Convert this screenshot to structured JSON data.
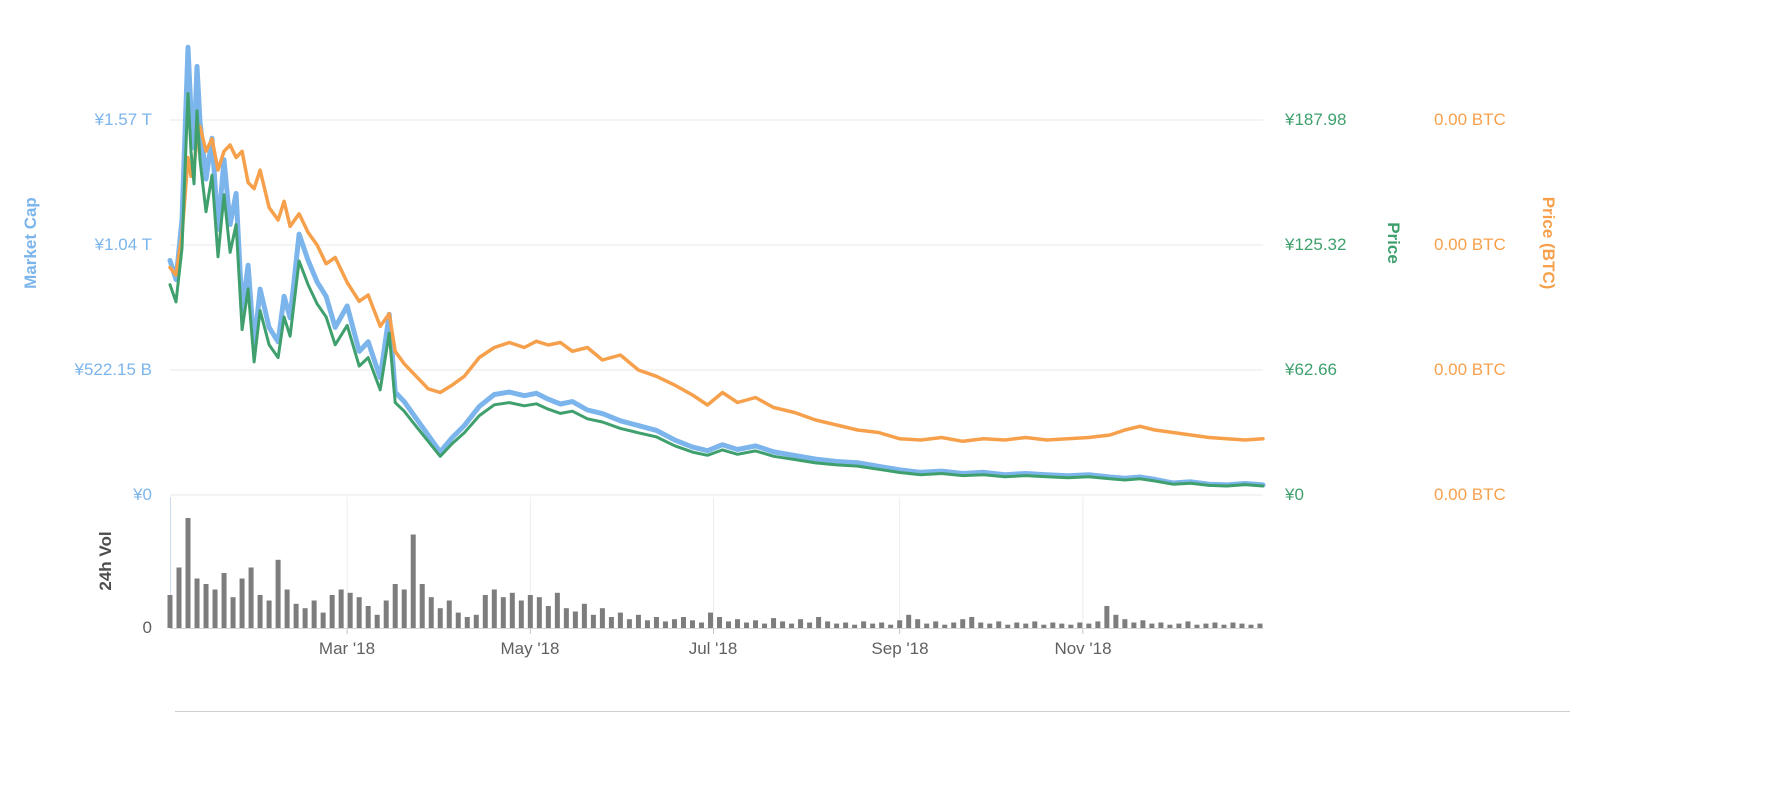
{
  "chart_data": {
    "type": "line",
    "grid": "horizontal-on",
    "legend": "none",
    "x_axis": {
      "year": "2018",
      "unit": "day_of_year_2018",
      "range_days": [
        0,
        364
      ],
      "tick_labels": [
        "Mar '18",
        "May '18",
        "Jul '18",
        "Sep '18",
        "Nov '18"
      ],
      "tick_days": [
        59,
        120,
        181,
        243,
        304
      ]
    },
    "y_axes": {
      "market_cap": {
        "title": "Market Cap",
        "side": "left",
        "color": "#7cb5ec",
        "tick_labels": [
          "¥1.57 T",
          "¥1.04 T",
          "¥522.15 B",
          "¥0"
        ],
        "tick_values_billions": [
          1566.45,
          1044.3,
          522.15,
          0
        ],
        "max": 1566.45
      },
      "price": {
        "title": "Price",
        "side": "right",
        "color": "#3fa06e",
        "tick_labels": [
          "¥187.98",
          "¥125.32",
          "¥62.66",
          "¥0"
        ],
        "tick_values": [
          187.98,
          125.32,
          62.66,
          0
        ],
        "max": 187.98
      },
      "price_btc": {
        "title": "Price (BTC)",
        "side": "right-outer",
        "color": "#f7a04c",
        "tick_labels": [
          "0.00 BTC",
          "0.00 BTC",
          "0.00 BTC",
          "0.00 BTC"
        ],
        "tick_values_grid_steps": [
          3,
          2,
          1,
          0
        ],
        "max": 3
      },
      "volume": {
        "title": "24h Vol",
        "side": "left",
        "color": "#4d4d4d",
        "tick_labels": [
          "0"
        ],
        "max": 1
      }
    },
    "x_days": [
      0,
      2,
      4,
      6,
      7,
      8,
      9,
      10,
      12,
      14,
      16,
      18,
      20,
      22,
      24,
      26,
      28,
      30,
      33,
      36,
      38,
      40,
      43,
      46,
      49,
      52,
      55,
      59,
      63,
      66,
      70,
      73,
      75,
      78,
      82,
      86,
      90,
      94,
      98,
      103,
      108,
      113,
      118,
      122,
      126,
      130,
      134,
      139,
      144,
      150,
      156,
      162,
      168,
      174,
      179,
      184,
      189,
      195,
      201,
      208,
      215,
      222,
      229,
      236,
      243,
      250,
      257,
      264,
      271,
      278,
      285,
      292,
      299,
      306,
      313,
      318,
      323,
      328,
      334,
      340,
      346,
      352,
      358,
      364
    ],
    "series": [
      {
        "name": "Market Cap",
        "axis": "market_cap",
        "unit": "billion JPY",
        "color": "#7cb5ec",
        "stroke_width": 5,
        "values": [
          980,
          900,
          1150,
          1870,
          1600,
          1450,
          1790,
          1560,
          1320,
          1490,
          1110,
          1400,
          1130,
          1260,
          770,
          960,
          620,
          860,
          700,
          640,
          830,
          740,
          1090,
          980,
          890,
          830,
          700,
          790,
          600,
          640,
          490,
          755,
          430,
          390,
          320,
          250,
          180,
          240,
          290,
          370,
          420,
          430,
          415,
          425,
          400,
          380,
          390,
          355,
          340,
          310,
          290,
          270,
          230,
          200,
          185,
          210,
          190,
          205,
          180,
          165,
          150,
          140,
          135,
          120,
          105,
          95,
          100,
          90,
          95,
          85,
          90,
          85,
          80,
          85,
          75,
          70,
          75,
          65,
          50,
          55,
          45,
          42,
          48,
          42
        ]
      },
      {
        "name": "Price (BTC)",
        "axis": "price_btc",
        "unit": "grid steps (axis tick labels all display 0.00 BTC)",
        "color": "#f7a04c",
        "stroke_width": 3.5,
        "values": [
          1.82,
          1.76,
          2.08,
          2.7,
          2.55,
          2.62,
          2.85,
          2.95,
          2.75,
          2.85,
          2.6,
          2.75,
          2.8,
          2.7,
          2.75,
          2.5,
          2.45,
          2.6,
          2.3,
          2.2,
          2.35,
          2.15,
          2.25,
          2.1,
          2.0,
          1.85,
          1.9,
          1.7,
          1.55,
          1.6,
          1.35,
          1.45,
          1.15,
          1.05,
          0.95,
          0.85,
          0.82,
          0.88,
          0.95,
          1.1,
          1.18,
          1.22,
          1.18,
          1.23,
          1.2,
          1.22,
          1.15,
          1.18,
          1.08,
          1.12,
          1.0,
          0.95,
          0.88,
          0.8,
          0.72,
          0.82,
          0.74,
          0.78,
          0.7,
          0.66,
          0.6,
          0.56,
          0.52,
          0.5,
          0.45,
          0.44,
          0.46,
          0.43,
          0.45,
          0.44,
          0.46,
          0.44,
          0.45,
          0.46,
          0.48,
          0.52,
          0.55,
          0.52,
          0.5,
          0.48,
          0.46,
          0.45,
          0.44,
          0.45
        ]
      },
      {
        "name": "Price",
        "axis": "price",
        "unit": "JPY",
        "color": "#3fa06e",
        "stroke_width": 3,
        "values": [
          105.4,
          96.8,
          123.7,
          201.2,
          172.2,
          156.0,
          192.6,
          167.9,
          142.0,
          160.3,
          119.4,
          150.6,
          121.6,
          135.6,
          82.9,
          103.3,
          66.7,
          92.5,
          75.3,
          68.9,
          89.3,
          79.6,
          117.3,
          105.4,
          95.8,
          89.3,
          75.3,
          85.0,
          64.6,
          68.9,
          52.7,
          81.2,
          46.3,
          42.0,
          34.4,
          26.9,
          19.4,
          25.8,
          31.2,
          39.8,
          45.2,
          46.3,
          44.7,
          45.7,
          43.0,
          40.9,
          42.0,
          38.2,
          36.6,
          33.4,
          31.2,
          29.1,
          24.7,
          21.5,
          19.9,
          22.6,
          20.4,
          22.1,
          19.4,
          17.8,
          16.1,
          15.1,
          14.5,
          12.9,
          11.3,
          10.2,
          10.8,
          9.7,
          10.2,
          9.1,
          9.7,
          9.1,
          8.6,
          9.1,
          8.1,
          7.5,
          8.1,
          7.0,
          5.4,
          5.9,
          4.8,
          4.5,
          5.2,
          4.5
        ]
      }
    ],
    "volume_bars": {
      "name": "24h Vol",
      "type": "bar",
      "color": "#7d7d7d",
      "start_day": 0,
      "x_step_days": 3,
      "normalized_values": [
        0.3,
        0.55,
        1.0,
        0.45,
        0.4,
        0.35,
        0.5,
        0.28,
        0.45,
        0.55,
        0.3,
        0.25,
        0.62,
        0.35,
        0.22,
        0.18,
        0.25,
        0.14,
        0.3,
        0.35,
        0.32,
        0.28,
        0.2,
        0.12,
        0.25,
        0.4,
        0.35,
        0.85,
        0.4,
        0.28,
        0.18,
        0.25,
        0.14,
        0.1,
        0.12,
        0.3,
        0.35,
        0.28,
        0.32,
        0.25,
        0.3,
        0.28,
        0.2,
        0.32,
        0.18,
        0.15,
        0.22,
        0.12,
        0.18,
        0.1,
        0.14,
        0.08,
        0.12,
        0.07,
        0.1,
        0.06,
        0.08,
        0.1,
        0.07,
        0.05,
        0.14,
        0.1,
        0.06,
        0.08,
        0.05,
        0.07,
        0.04,
        0.09,
        0.06,
        0.04,
        0.08,
        0.05,
        0.1,
        0.06,
        0.04,
        0.05,
        0.03,
        0.06,
        0.04,
        0.05,
        0.03,
        0.07,
        0.12,
        0.08,
        0.04,
        0.06,
        0.03,
        0.05,
        0.08,
        0.1,
        0.05,
        0.04,
        0.06,
        0.03,
        0.05,
        0.04,
        0.06,
        0.03,
        0.05,
        0.04,
        0.03,
        0.05,
        0.04,
        0.06,
        0.2,
        0.12,
        0.08,
        0.05,
        0.07,
        0.04,
        0.05,
        0.03,
        0.04,
        0.06,
        0.03,
        0.04,
        0.05,
        0.03,
        0.05,
        0.04,
        0.03,
        0.04
      ]
    }
  }
}
